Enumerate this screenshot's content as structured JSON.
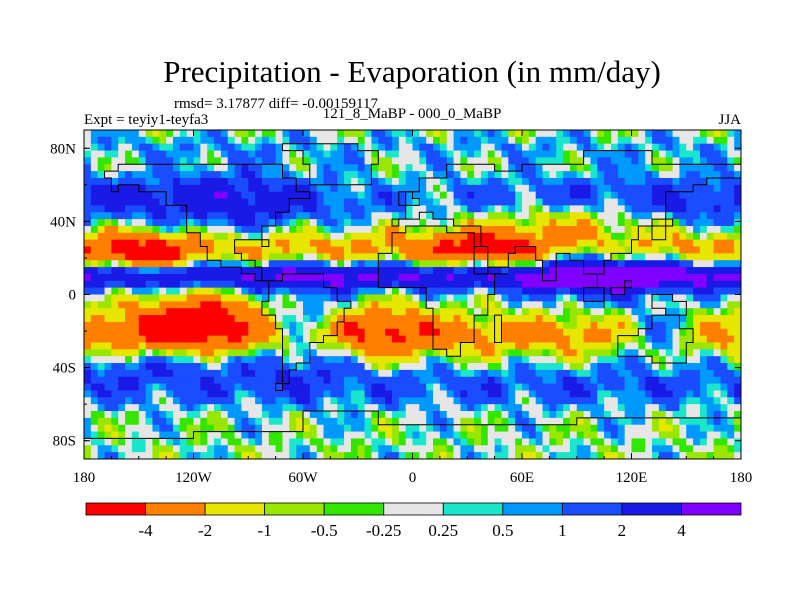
{
  "chart_data": {
    "type": "heatmap",
    "title": "Precipitation - Evaporation (in mm/day)",
    "stats_text": "rmsd= 3.17877 diff= -0.00159117",
    "experiment": "Expt = teyiy1-teyfa3",
    "comparison": "121_8_MaBP - 000_0_MaBP",
    "season": "JJA",
    "x_axis": {
      "range": [
        -180,
        180
      ],
      "ticks": [
        "180",
        "120W",
        "60W",
        "0",
        "60E",
        "120E",
        "180"
      ]
    },
    "y_axis": {
      "range": [
        -90,
        90
      ],
      "ticks": [
        "80N",
        "40N",
        "0",
        "40S",
        "80S"
      ]
    },
    "colorbar": {
      "levels": [
        "-4",
        "-2",
        "-1",
        "-0.5",
        "-0.25",
        "0.25",
        "0.5",
        "1",
        "2",
        "4"
      ],
      "colors": [
        "#ff0000",
        "#ff8000",
        "#e6e600",
        "#99e600",
        "#33e600",
        "#e6e6e6",
        "#1ae6cc",
        "#0099ff",
        "#1a4dff",
        "#1a1ae6",
        "#8000ff"
      ]
    }
  }
}
